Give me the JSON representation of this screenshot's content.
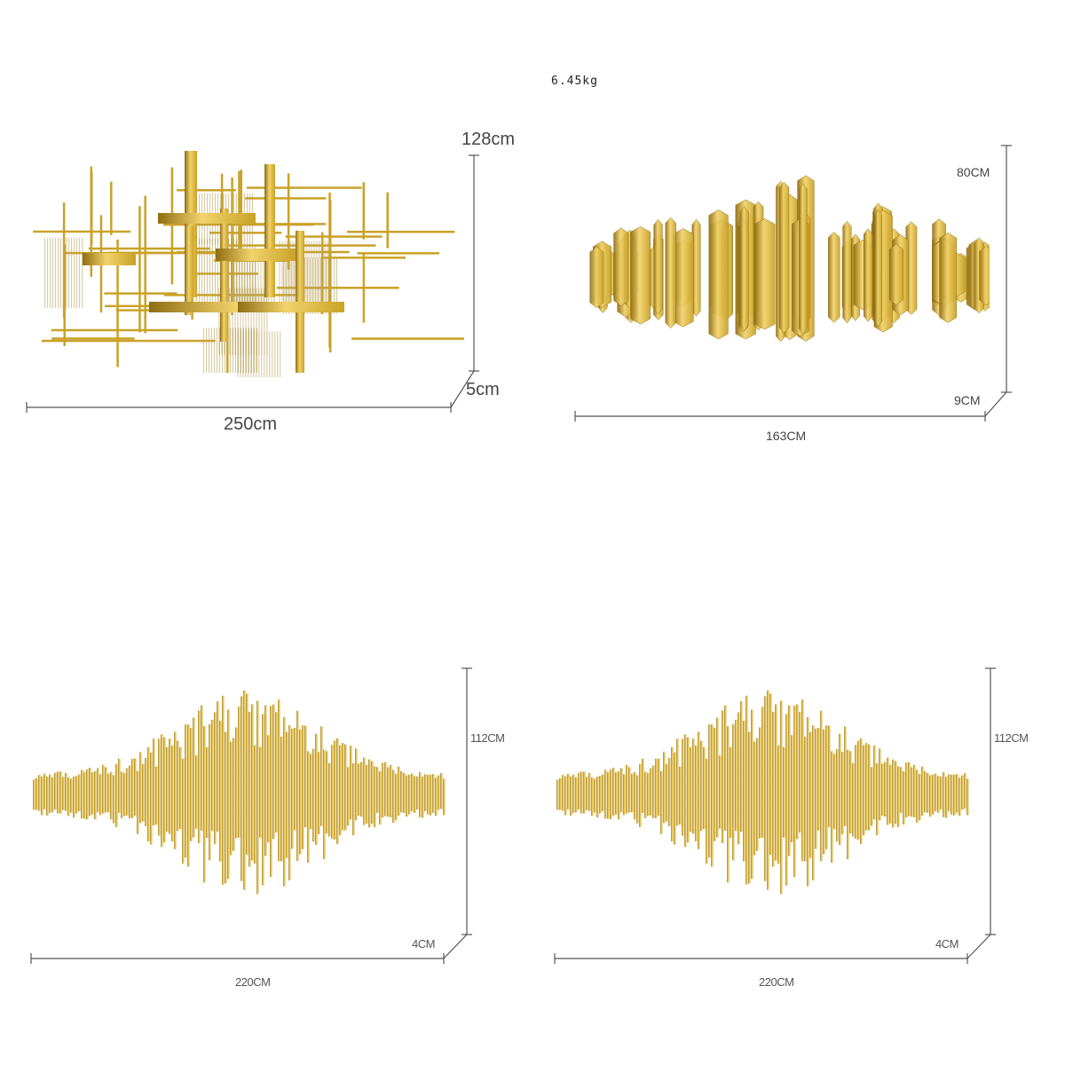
{
  "weight": "6.45kg",
  "products": [
    {
      "height": "128cm",
      "depth": "5cm",
      "width": "250cm"
    },
    {
      "height": "80CM",
      "depth": "9CM",
      "width": "163CM"
    },
    {
      "height": "112CM",
      "depth": "4CM",
      "width": "220CM"
    },
    {
      "height": "112CM",
      "depth": "4CM",
      "width": "220CM"
    }
  ],
  "colors": {
    "gold": "#c9a227",
    "gold_light": "#f2d36b",
    "gold_dark": "#8f6d12",
    "line": "#555555"
  }
}
